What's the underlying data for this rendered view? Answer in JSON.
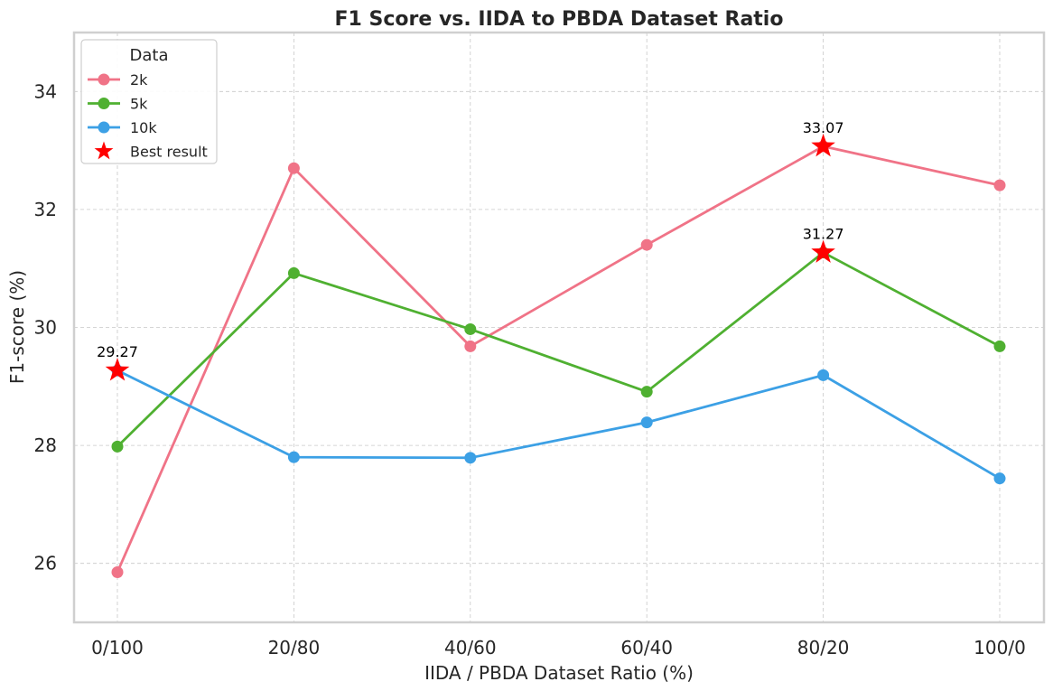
{
  "chart_data": {
    "type": "line",
    "title": "F1 Score vs. IIDA to PBDA Dataset Ratio",
    "xlabel": "IIDA / PBDA Dataset Ratio (%)",
    "ylabel": "F1-score (%)",
    "categories": [
      "0/100",
      "20/80",
      "40/60",
      "60/40",
      "80/20",
      "100/0"
    ],
    "ylim": [
      25,
      35
    ],
    "yticks": [
      26,
      28,
      30,
      32,
      34
    ],
    "grid": true,
    "legend": {
      "title": "Data",
      "placement": "top-left"
    },
    "series": [
      {
        "name": "2k",
        "color": "#f07387",
        "values": [
          25.85,
          32.7,
          29.68,
          31.4,
          33.07,
          32.41
        ]
      },
      {
        "name": "5k",
        "color": "#4fb031",
        "values": [
          27.98,
          30.92,
          29.97,
          28.91,
          31.27,
          29.68
        ]
      },
      {
        "name": "10k",
        "color": "#3ca0e5",
        "values": [
          29.27,
          27.8,
          27.79,
          28.39,
          29.19,
          27.44
        ]
      }
    ],
    "best_results": {
      "legend_label": "Best result",
      "color": "#ff0000",
      "points": [
        {
          "series": "2k",
          "category": "80/20",
          "value": 33.07,
          "label": "33.07"
        },
        {
          "series": "5k",
          "category": "80/20",
          "value": 31.27,
          "label": "31.27"
        },
        {
          "series": "10k",
          "category": "0/100",
          "value": 29.27,
          "label": "29.27"
        }
      ]
    }
  }
}
